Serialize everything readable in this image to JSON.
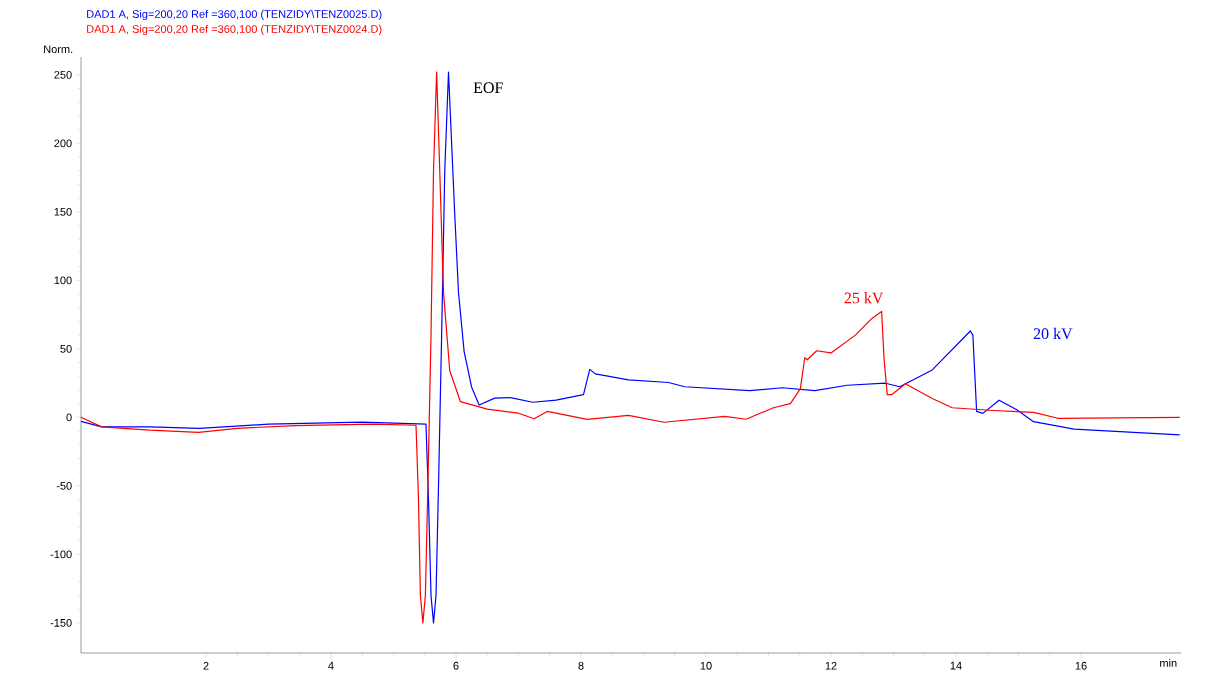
{
  "chart_data": {
    "type": "line",
    "xlabel": "min",
    "ylabel": "Norm.",
    "xlim": [
      0,
      17.6
    ],
    "ylim": [
      -172,
      263
    ],
    "xticks": [
      2,
      4,
      6,
      8,
      10,
      12,
      14,
      16
    ],
    "yticks": [
      -150,
      -100,
      -50,
      0,
      50,
      100,
      150,
      200,
      250
    ],
    "annotations": [
      "EOF",
      "25 kV",
      "20 kV"
    ],
    "series": [
      {
        "name": "DAD1 A, Sig=200,20 Ref =360,100 (TENZIDY\\TENZ0025.D)",
        "color": "#0000ff",
        "x": [
          0,
          0.33,
          1.1,
          1.9,
          3.0,
          4.5,
          5.52,
          5.56,
          5.6,
          5.64,
          5.68,
          5.72,
          5.77,
          5.82,
          5.88,
          5.93,
          5.98,
          6.04,
          6.13,
          6.25,
          6.37,
          6.62,
          6.87,
          7.23,
          7.6,
          8.04,
          8.14,
          8.23,
          8.76,
          9.4,
          9.66,
          10.7,
          11.22,
          11.74,
          12.26,
          12.87,
          13.1,
          13.62,
          14.23,
          14.27,
          14.33,
          14.43,
          14.69,
          14.98,
          15.24,
          15.89,
          17.58
        ],
        "values": [
          -3,
          -7,
          -7,
          -8,
          -5,
          -3.5,
          -5,
          -60,
          -130,
          -150,
          -130,
          -50,
          60,
          180,
          252,
          200,
          148,
          91,
          48,
          22,
          9,
          14,
          14.4,
          11,
          12.6,
          16.6,
          35,
          31.7,
          27.4,
          25.4,
          22.3,
          19.5,
          21.6,
          19.5,
          23.4,
          24.9,
          22.3,
          34.6,
          63,
          60,
          4.3,
          2.9,
          12.5,
          5.3,
          -3.2,
          -8.6,
          -12.8
        ]
      },
      {
        "name": "DAD1 A, Sig=200,20 Ref =360,100 (TENZIDY\\TENZ0024.D)",
        "color": "#ff0000",
        "x": [
          0,
          0.33,
          1.1,
          1.88,
          2.5,
          3.43,
          4.67,
          5.36,
          5.4,
          5.43,
          5.47,
          5.51,
          5.55,
          5.6,
          5.64,
          5.69,
          5.74,
          5.78,
          5.8,
          5.9,
          6.07,
          6.5,
          7.0,
          7.25,
          7.46,
          8.1,
          8.76,
          9.33,
          10.3,
          10.64,
          11.08,
          11.35,
          11.51,
          11.58,
          11.62,
          11.77,
          12.0,
          12.39,
          12.65,
          12.81,
          12.85,
          12.9,
          12.97,
          13.19,
          13.62,
          13.94,
          14.59,
          15.24,
          15.63,
          17.58
        ],
        "values": [
          0,
          -7,
          -9.4,
          -11,
          -8,
          -6,
          -5,
          -5.8,
          -60,
          -130,
          -150,
          -130,
          -50,
          60,
          180,
          252,
          180,
          120,
          91,
          34,
          11.5,
          6,
          3,
          -1,
          4.3,
          -1.5,
          1.4,
          -3.6,
          0.7,
          -1.4,
          7,
          10,
          21,
          43.5,
          42,
          48.6,
          47,
          60,
          72,
          77.3,
          42,
          16.6,
          16.5,
          24.5,
          13.7,
          7,
          5,
          3.6,
          -0.7,
          0
        ]
      }
    ]
  }
}
